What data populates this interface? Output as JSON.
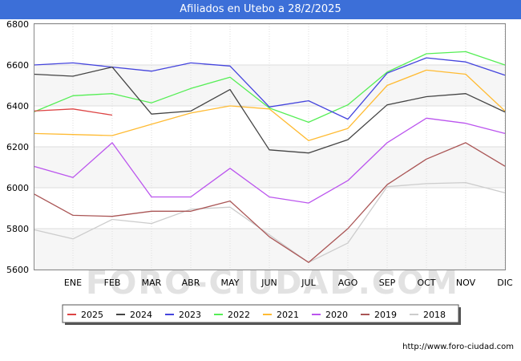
{
  "title": "Afiliados en Utebo a 28/2/2025",
  "footer_url": "http://www.foro-ciudad.com",
  "watermark": "FORO-CIUDAD.COM",
  "colors": {
    "title_bg": "#3c6fd8",
    "plot_bg": "#f6f6f6",
    "band_bg": "#ffffff",
    "grid": "#dddddd"
  },
  "chart_data": {
    "type": "line",
    "title": "Afiliados en Utebo a 28/2/2025",
    "x_labels": [
      "ENE",
      "FEB",
      "MAR",
      "ABR",
      "MAY",
      "JUN",
      "JUL",
      "AGO",
      "SEP",
      "OCT",
      "NOV",
      "DIC"
    ],
    "ylim": [
      5600,
      6800
    ],
    "y_ticks": [
      5600,
      5800,
      6000,
      6200,
      6400,
      6600,
      6800
    ],
    "grid": true,
    "legend_position": "bottom",
    "series": [
      {
        "name": "2025",
        "color": "#dd4444",
        "values": [
          6375,
          6385,
          6355
        ]
      },
      {
        "name": "2024",
        "color": "#444444",
        "values": [
          6555,
          6545,
          6590,
          6360,
          6375,
          6480,
          6185,
          6170,
          6235,
          6405,
          6445,
          6460,
          6370
        ]
      },
      {
        "name": "2023",
        "color": "#4444dd",
        "values": [
          6600,
          6610,
          6590,
          6570,
          6610,
          6595,
          6395,
          6425,
          6335,
          6560,
          6635,
          6615,
          6550
        ]
      },
      {
        "name": "2022",
        "color": "#55ee55",
        "values": [
          6370,
          6450,
          6460,
          6415,
          6485,
          6540,
          6390,
          6320,
          6405,
          6565,
          6655,
          6665,
          6600
        ]
      },
      {
        "name": "2021",
        "color": "#ffbb33",
        "values": [
          6265,
          6260,
          6255,
          6310,
          6365,
          6400,
          6385,
          6230,
          6290,
          6500,
          6575,
          6555,
          6375
        ]
      },
      {
        "name": "2020",
        "color": "#bb55ee",
        "values": [
          6105,
          6050,
          6220,
          5955,
          5955,
          6095,
          5955,
          5925,
          6035,
          6220,
          6340,
          6315,
          6265
        ]
      },
      {
        "name": "2019",
        "color": "#aa5555",
        "values": [
          5970,
          5865,
          5860,
          5885,
          5885,
          5935,
          5760,
          5635,
          5800,
          6015,
          6140,
          6220,
          6105
        ]
      },
      {
        "name": "2018",
        "color": "#cccccc",
        "values": [
          5795,
          5750,
          5845,
          5825,
          5895,
          5905,
          5770,
          5635,
          5730,
          6005,
          6020,
          6025,
          5975
        ]
      }
    ]
  }
}
